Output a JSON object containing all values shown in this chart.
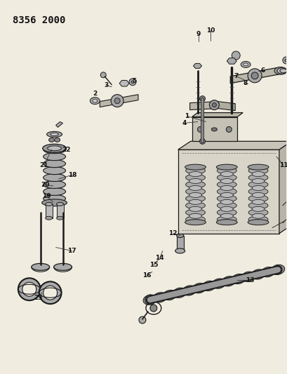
{
  "title": "8356 2000",
  "bg_color": "#f0ece0",
  "line_color": "#1a1a1a",
  "label_color": "#111111",
  "label_fontsize": 6.5,
  "title_fontsize": 10,
  "gray_fill": "#aaaaaa",
  "mid_fill": "#888888",
  "dark_fill": "#555555",
  "light_fill": "#cccccc"
}
